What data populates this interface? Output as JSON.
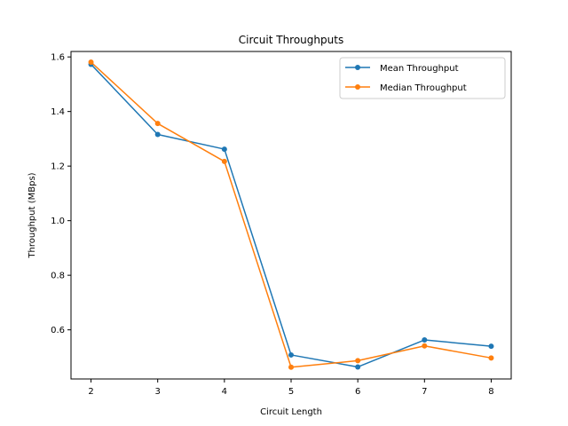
{
  "chart_data": {
    "type": "line",
    "title": "Circuit Throughputs",
    "xlabel": "Circuit Length",
    "ylabel": "Throughput (MBps)",
    "x": [
      2,
      3,
      4,
      5,
      6,
      7,
      8
    ],
    "x_ticks": [
      "2",
      "3",
      "4",
      "5",
      "6",
      "7",
      "8"
    ],
    "y_ticks": [
      "0.6",
      "0.8",
      "1.0",
      "1.2",
      "1.4",
      "1.6"
    ],
    "y_tick_values": [
      0.6,
      0.8,
      1.0,
      1.2,
      1.4,
      1.6
    ],
    "xlim": [
      1.7,
      8.3
    ],
    "ylim": [
      0.42,
      1.62
    ],
    "grid": false,
    "legend_position": "top-right",
    "series": [
      {
        "name": "Mean Throughput",
        "color": "#1f77b4",
        "values": [
          1.573,
          1.316,
          1.262,
          0.508,
          0.464,
          0.563,
          0.54
        ]
      },
      {
        "name": "Median Throughput",
        "color": "#ff7f0e",
        "values": [
          1.581,
          1.356,
          1.217,
          0.463,
          0.487,
          0.541,
          0.497
        ]
      }
    ]
  }
}
